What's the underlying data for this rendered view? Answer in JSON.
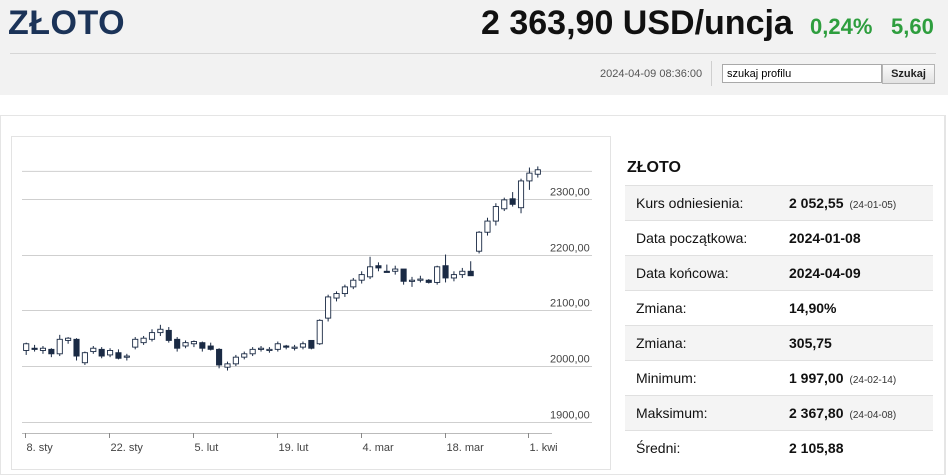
{
  "header": {
    "title": "ZŁOTO",
    "price": "2 363,90 USD/uncja",
    "change_pct": "0,24%",
    "change_abs": "5,60",
    "timestamp": "2024-04-09 08:36:00"
  },
  "search": {
    "value": "szukaj profilu",
    "button_label": "Szukaj"
  },
  "colors": {
    "title": "#1b3358",
    "positive": "#2e9e3e",
    "candle_up": "#ffffff",
    "candle_down": "#1a2a44",
    "grid": "#cfcfcf"
  },
  "sidebar": {
    "title": "ZŁOTO",
    "rows": [
      {
        "label": "Kurs odniesienia:",
        "value": "2 052,55",
        "date": "(24-01-05)"
      },
      {
        "label": "Data początkowa:",
        "value": "2024-01-08"
      },
      {
        "label": "Data końcowa:",
        "value": "2024-04-09"
      },
      {
        "label": "Zmiana:",
        "value": "14,90%"
      },
      {
        "label": "Zmiana:",
        "value": "305,75"
      },
      {
        "label": "Minimum:",
        "value": "1 997,00",
        "date": "(24-02-14)"
      },
      {
        "label": "Maksimum:",
        "value": "2 367,80",
        "date": "(24-04-08)"
      },
      {
        "label": "Średni:",
        "value": "2 105,88"
      }
    ]
  },
  "chart_data": {
    "type": "candlestick",
    "title": "",
    "y_ticks": [
      1900,
      2000,
      2100,
      2200,
      2300
    ],
    "y_tick_labels": [
      "1900,00",
      "2000,00",
      "2100,00",
      "2200,00",
      "2300,00"
    ],
    "ylim": [
      1880,
      2400
    ],
    "grid": "horizontal",
    "x_tick_labels": [
      "8. sty",
      "22. sty",
      "5. lut",
      "19. lut",
      "4. mar",
      "18. mar",
      "1. kwi"
    ],
    "x_tick_indices": [
      0,
      10,
      20,
      30,
      40,
      50,
      60
    ],
    "candles": [
      {
        "o": 2028,
        "h": 2042,
        "l": 2020,
        "c": 2040
      },
      {
        "o": 2032,
        "h": 2038,
        "l": 2026,
        "c": 2030
      },
      {
        "o": 2028,
        "h": 2036,
        "l": 2022,
        "c": 2032
      },
      {
        "o": 2030,
        "h": 2032,
        "l": 2016,
        "c": 2022
      },
      {
        "o": 2022,
        "h": 2056,
        "l": 2018,
        "c": 2048
      },
      {
        "o": 2046,
        "h": 2052,
        "l": 2040,
        "c": 2050
      },
      {
        "o": 2048,
        "h": 2050,
        "l": 2010,
        "c": 2018
      },
      {
        "o": 2006,
        "h": 2026,
        "l": 2002,
        "c": 2024
      },
      {
        "o": 2026,
        "h": 2036,
        "l": 2022,
        "c": 2032
      },
      {
        "o": 2030,
        "h": 2034,
        "l": 2014,
        "c": 2018
      },
      {
        "o": 2020,
        "h": 2032,
        "l": 2016,
        "c": 2028
      },
      {
        "o": 2024,
        "h": 2030,
        "l": 2012,
        "c": 2014
      },
      {
        "o": 2016,
        "h": 2022,
        "l": 2010,
        "c": 2018
      },
      {
        "o": 2034,
        "h": 2052,
        "l": 2030,
        "c": 2048
      },
      {
        "o": 2042,
        "h": 2054,
        "l": 2038,
        "c": 2050
      },
      {
        "o": 2048,
        "h": 2066,
        "l": 2044,
        "c": 2060
      },
      {
        "o": 2060,
        "h": 2074,
        "l": 2054,
        "c": 2066
      },
      {
        "o": 2064,
        "h": 2070,
        "l": 2042,
        "c": 2046
      },
      {
        "o": 2048,
        "h": 2052,
        "l": 2026,
        "c": 2032
      },
      {
        "o": 2036,
        "h": 2046,
        "l": 2032,
        "c": 2042
      },
      {
        "o": 2040,
        "h": 2046,
        "l": 2034,
        "c": 2044
      },
      {
        "o": 2042,
        "h": 2044,
        "l": 2026,
        "c": 2032
      },
      {
        "o": 2036,
        "h": 2042,
        "l": 2028,
        "c": 2030
      },
      {
        "o": 2030,
        "h": 2032,
        "l": 1996,
        "c": 2002
      },
      {
        "o": 1998,
        "h": 2008,
        "l": 1992,
        "c": 2004
      },
      {
        "o": 2004,
        "h": 2020,
        "l": 2000,
        "c": 2016
      },
      {
        "o": 2016,
        "h": 2026,
        "l": 2012,
        "c": 2022
      },
      {
        "o": 2022,
        "h": 2034,
        "l": 2018,
        "c": 2030
      },
      {
        "o": 2030,
        "h": 2036,
        "l": 2026,
        "c": 2032
      },
      {
        "o": 2028,
        "h": 2034,
        "l": 2024,
        "c": 2030
      },
      {
        "o": 2030,
        "h": 2044,
        "l": 2026,
        "c": 2040
      },
      {
        "o": 2036,
        "h": 2038,
        "l": 2030,
        "c": 2034
      },
      {
        "o": 2032,
        "h": 2038,
        "l": 2028,
        "c": 2034
      },
      {
        "o": 2034,
        "h": 2044,
        "l": 2030,
        "c": 2040
      },
      {
        "o": 2046,
        "h": 2046,
        "l": 2030,
        "c": 2032
      },
      {
        "o": 2040,
        "h": 2084,
        "l": 2038,
        "c": 2082
      },
      {
        "o": 2086,
        "h": 2128,
        "l": 2080,
        "c": 2124
      },
      {
        "o": 2122,
        "h": 2134,
        "l": 2116,
        "c": 2130
      },
      {
        "o": 2130,
        "h": 2146,
        "l": 2124,
        "c": 2142
      },
      {
        "o": 2142,
        "h": 2158,
        "l": 2138,
        "c": 2154
      },
      {
        "o": 2154,
        "h": 2170,
        "l": 2148,
        "c": 2164
      },
      {
        "o": 2160,
        "h": 2196,
        "l": 2156,
        "c": 2178
      },
      {
        "o": 2180,
        "h": 2186,
        "l": 2170,
        "c": 2176
      },
      {
        "o": 2170,
        "h": 2182,
        "l": 2168,
        "c": 2168
      },
      {
        "o": 2170,
        "h": 2180,
        "l": 2164,
        "c": 2174
      },
      {
        "o": 2174,
        "h": 2174,
        "l": 2146,
        "c": 2152
      },
      {
        "o": 2152,
        "h": 2160,
        "l": 2142,
        "c": 2154
      },
      {
        "o": 2154,
        "h": 2162,
        "l": 2150,
        "c": 2156
      },
      {
        "o": 2154,
        "h": 2156,
        "l": 2148,
        "c": 2150
      },
      {
        "o": 2150,
        "h": 2180,
        "l": 2146,
        "c": 2178
      },
      {
        "o": 2180,
        "h": 2200,
        "l": 2150,
        "c": 2158
      },
      {
        "o": 2158,
        "h": 2170,
        "l": 2152,
        "c": 2164
      },
      {
        "o": 2164,
        "h": 2176,
        "l": 2158,
        "c": 2170
      },
      {
        "o": 2170,
        "h": 2188,
        "l": 2162,
        "c": 2162
      },
      {
        "o": 2206,
        "h": 2242,
        "l": 2202,
        "c": 2240
      },
      {
        "o": 2240,
        "h": 2266,
        "l": 2234,
        "c": 2260
      },
      {
        "o": 2260,
        "h": 2292,
        "l": 2252,
        "c": 2286
      },
      {
        "o": 2282,
        "h": 2302,
        "l": 2278,
        "c": 2298
      },
      {
        "o": 2300,
        "h": 2312,
        "l": 2286,
        "c": 2290
      },
      {
        "o": 2284,
        "h": 2336,
        "l": 2274,
        "c": 2332
      },
      {
        "o": 2332,
        "h": 2356,
        "l": 2316,
        "c": 2346
      },
      {
        "o": 2344,
        "h": 2358,
        "l": 2338,
        "c": 2352
      }
    ]
  }
}
